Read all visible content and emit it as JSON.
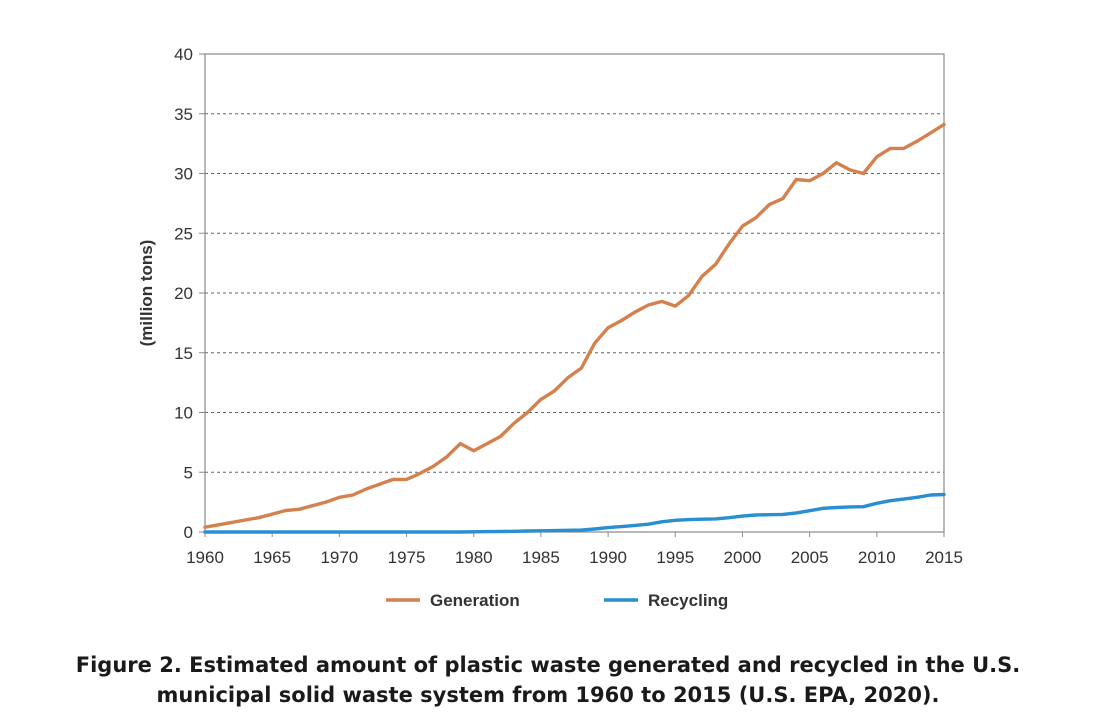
{
  "caption": {
    "line1": "Figure 2. Estimated amount of plastic waste generated and recycled in the U.S.",
    "line2": "municipal solid waste system from 1960 to 2015 (U.S. EPA, 2020)."
  },
  "chart_data": {
    "type": "line",
    "ylabel": "(million tons)",
    "xlabel": "",
    "xlim": [
      1960,
      2015
    ],
    "ylim": [
      0,
      40
    ],
    "x_ticks": [
      "1960",
      "1965",
      "1970",
      "1975",
      "1980",
      "1985",
      "1990",
      "1995",
      "2000",
      "2005",
      "2010",
      "2015"
    ],
    "y_ticks": [
      "0",
      "5",
      "10",
      "15",
      "20",
      "25",
      "30",
      "35",
      "40"
    ],
    "grid": "horizontal dashed",
    "legend_position": "bottom-center",
    "x": [
      1960,
      1961,
      1962,
      1963,
      1964,
      1965,
      1966,
      1967,
      1968,
      1969,
      1970,
      1971,
      1972,
      1973,
      1974,
      1975,
      1976,
      1977,
      1978,
      1979,
      1980,
      1981,
      1982,
      1983,
      1984,
      1985,
      1986,
      1987,
      1988,
      1989,
      1990,
      1991,
      1992,
      1993,
      1994,
      1995,
      1996,
      1997,
      1998,
      1999,
      2000,
      2001,
      2002,
      2003,
      2004,
      2005,
      2006,
      2007,
      2008,
      2009,
      2010,
      2011,
      2012,
      2013,
      2014,
      2015
    ],
    "series": [
      {
        "name": "Generation",
        "color": "#d4814e",
        "values": [
          0.4,
          0.6,
          0.8,
          1.0,
          1.2,
          1.5,
          1.8,
          1.9,
          2.2,
          2.5,
          2.9,
          3.1,
          3.6,
          4.0,
          4.4,
          4.4,
          4.9,
          5.5,
          6.3,
          7.4,
          6.8,
          7.4,
          8.0,
          9.1,
          10.0,
          11.1,
          11.8,
          12.9,
          13.7,
          15.8,
          17.1,
          17.7,
          18.4,
          19.0,
          19.3,
          18.9,
          19.8,
          21.4,
          22.4,
          24.1,
          25.6,
          26.3,
          27.4,
          27.9,
          29.5,
          29.4,
          30.0,
          30.9,
          30.3,
          30.0,
          31.4,
          32.1,
          32.1,
          32.7,
          33.4,
          34.1
        ]
      },
      {
        "name": "Recycling",
        "color": "#2a8fd0",
        "values": [
          0,
          0,
          0,
          0,
          0,
          0,
          0,
          0,
          0,
          0,
          0,
          0,
          0,
          0,
          0,
          0,
          0,
          0,
          0,
          0,
          0.02,
          0.03,
          0.04,
          0.06,
          0.08,
          0.1,
          0.12,
          0.14,
          0.16,
          0.25,
          0.37,
          0.45,
          0.55,
          0.65,
          0.85,
          0.98,
          1.04,
          1.07,
          1.1,
          1.2,
          1.33,
          1.42,
          1.45,
          1.47,
          1.6,
          1.78,
          1.98,
          2.05,
          2.1,
          2.12,
          2.4,
          2.62,
          2.75,
          2.9,
          3.1,
          3.14
        ]
      }
    ]
  }
}
